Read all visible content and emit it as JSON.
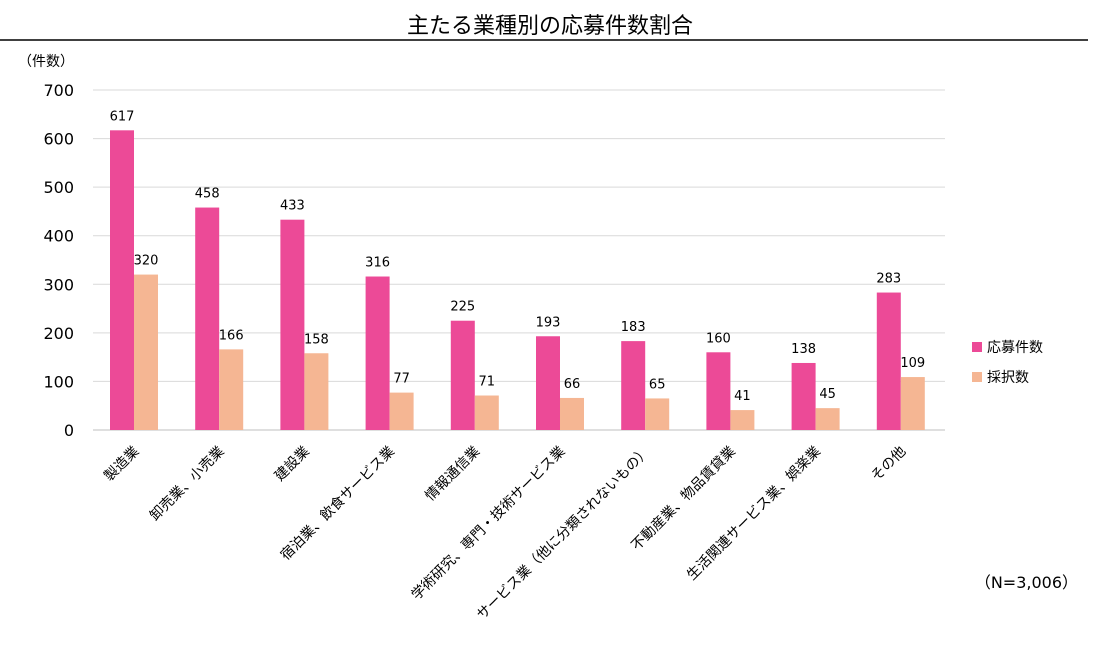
{
  "chart_data": {
    "type": "bar",
    "title": "主たる業種別の応募件数割合",
    "ylabel": "（件数）",
    "xlabel": "",
    "ylim": [
      0,
      700
    ],
    "yticks": [
      0,
      100,
      200,
      300,
      400,
      500,
      600,
      700
    ],
    "grid": true,
    "legend_position": "right",
    "note": "（N=3,006）",
    "categories": [
      "製造業",
      "卸売業、小売業",
      "建設業",
      "宿泊業、飲食サービス業",
      "情報通信業",
      "学術研究、専門・技術サービス業",
      "サービス業（他に分類されないもの）",
      "不動産業、物品賃貸業",
      "生活関連サービス業、娯楽業",
      "その他"
    ],
    "series": [
      {
        "name": "応募件数",
        "color": "#EC4A97",
        "values": [
          617,
          458,
          433,
          316,
          225,
          193,
          183,
          160,
          138,
          283
        ]
      },
      {
        "name": "採択数",
        "color": "#F5B693",
        "values": [
          320,
          166,
          158,
          77,
          71,
          66,
          65,
          41,
          45,
          109
        ]
      }
    ]
  }
}
